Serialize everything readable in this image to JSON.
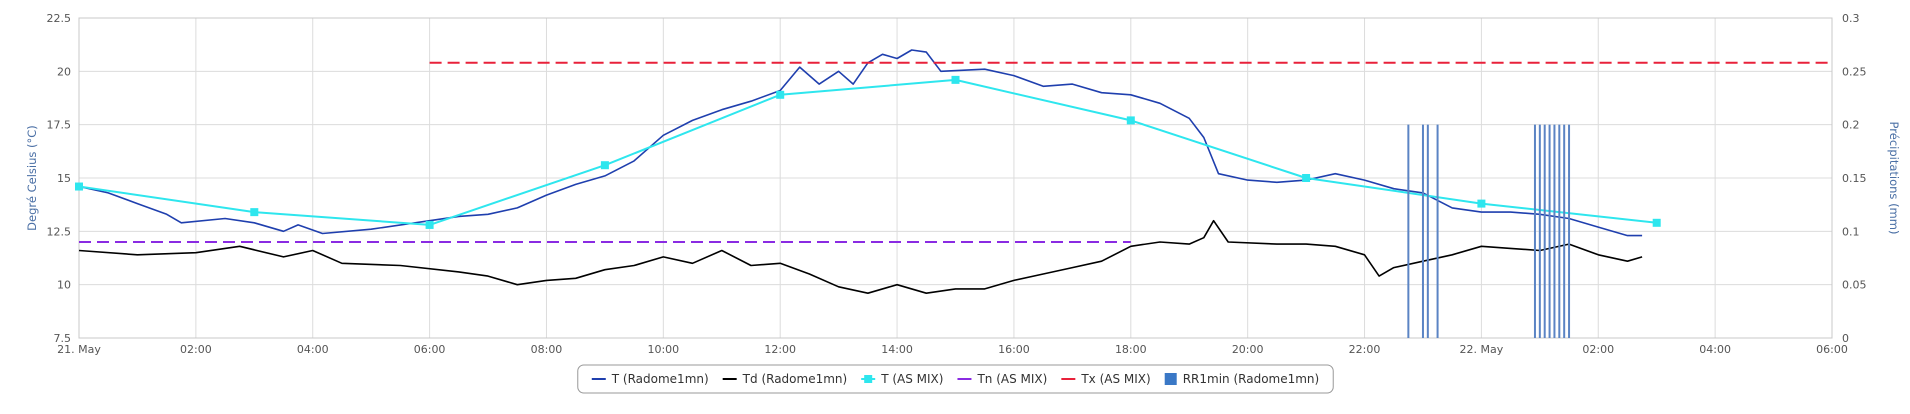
{
  "chart_data": {
    "type": "line",
    "x_axis": {
      "type": "datetime",
      "min": "2023-05-21 00:00",
      "max": "2023-05-22 06:00",
      "tick_labels": [
        "21. May",
        "02:00",
        "04:00",
        "06:00",
        "08:00",
        "10:00",
        "12:00",
        "14:00",
        "16:00",
        "18:00",
        "20:00",
        "22:00",
        "22. May",
        "02:00",
        "04:00",
        "06:00"
      ]
    },
    "y_left": {
      "title": "Degré Celsius (°C)",
      "min": 7.5,
      "max": 22.5,
      "tick_labels": [
        "7.5",
        "10",
        "12.5",
        "15",
        "17.5",
        "20",
        "22.5"
      ]
    },
    "y_right": {
      "title": "Précipitations (mm)",
      "min": 0,
      "max": 0.3,
      "tick_labels": [
        "0",
        "0.05",
        "0.1",
        "0.15",
        "0.2",
        "0.25",
        "0.3"
      ]
    },
    "grid": true,
    "legend_position": "bottom-center",
    "series": [
      {
        "name": "T (Radome1mn)",
        "color": "#1f3fae",
        "kind": "line",
        "points": [
          [
            "2023-05-21 00:00",
            14.6
          ],
          [
            "2023-05-21 00:30",
            14.3
          ],
          [
            "2023-05-21 01:00",
            13.8
          ],
          [
            "2023-05-21 01:30",
            13.3
          ],
          [
            "2023-05-21 01:45",
            12.9
          ],
          [
            "2023-05-21 02:30",
            13.1
          ],
          [
            "2023-05-21 03:00",
            12.9
          ],
          [
            "2023-05-21 03:30",
            12.5
          ],
          [
            "2023-05-21 03:45",
            12.8
          ],
          [
            "2023-05-21 04:10",
            12.4
          ],
          [
            "2023-05-21 05:00",
            12.6
          ],
          [
            "2023-05-21 06:00",
            13.0
          ],
          [
            "2023-05-21 06:30",
            13.2
          ],
          [
            "2023-05-21 07:00",
            13.3
          ],
          [
            "2023-05-21 07:30",
            13.6
          ],
          [
            "2023-05-21 08:00",
            14.2
          ],
          [
            "2023-05-21 08:30",
            14.7
          ],
          [
            "2023-05-21 09:00",
            15.1
          ],
          [
            "2023-05-21 09:30",
            15.8
          ],
          [
            "2023-05-21 10:00",
            17.0
          ],
          [
            "2023-05-21 10:30",
            17.7
          ],
          [
            "2023-05-21 11:00",
            18.2
          ],
          [
            "2023-05-21 11:30",
            18.6
          ],
          [
            "2023-05-21 12:00",
            19.1
          ],
          [
            "2023-05-21 12:20",
            20.2
          ],
          [
            "2023-05-21 12:40",
            19.4
          ],
          [
            "2023-05-21 13:00",
            20.0
          ],
          [
            "2023-05-21 13:15",
            19.4
          ],
          [
            "2023-05-21 13:30",
            20.4
          ],
          [
            "2023-05-21 13:45",
            20.8
          ],
          [
            "2023-05-21 14:00",
            20.6
          ],
          [
            "2023-05-21 14:15",
            21.0
          ],
          [
            "2023-05-21 14:30",
            20.9
          ],
          [
            "2023-05-21 14:45",
            20.0
          ],
          [
            "2023-05-21 15:30",
            20.1
          ],
          [
            "2023-05-21 16:00",
            19.8
          ],
          [
            "2023-05-21 16:30",
            19.3
          ],
          [
            "2023-05-21 17:00",
            19.4
          ],
          [
            "2023-05-21 17:30",
            19.0
          ],
          [
            "2023-05-21 18:00",
            18.9
          ],
          [
            "2023-05-21 18:30",
            18.5
          ],
          [
            "2023-05-21 19:00",
            17.8
          ],
          [
            "2023-05-21 19:15",
            16.9
          ],
          [
            "2023-05-21 19:30",
            15.2
          ],
          [
            "2023-05-21 20:00",
            14.9
          ],
          [
            "2023-05-21 20:30",
            14.8
          ],
          [
            "2023-05-21 21:00",
            14.9
          ],
          [
            "2023-05-21 21:30",
            15.2
          ],
          [
            "2023-05-21 22:00",
            14.9
          ],
          [
            "2023-05-21 22:30",
            14.5
          ],
          [
            "2023-05-21 23:00",
            14.3
          ],
          [
            "2023-05-21 23:30",
            13.6
          ],
          [
            "2023-05-22 00:00",
            13.4
          ],
          [
            "2023-05-22 00:30",
            13.4
          ],
          [
            "2023-05-22 01:00",
            13.3
          ],
          [
            "2023-05-22 01:30",
            13.1
          ],
          [
            "2023-05-22 02:00",
            12.7
          ],
          [
            "2023-05-22 02:30",
            12.3
          ],
          [
            "2023-05-22 02:45",
            12.3
          ]
        ]
      },
      {
        "name": "Td (Radome1mn)",
        "color": "#000000",
        "kind": "line",
        "points": [
          [
            "2023-05-21 00:00",
            11.6
          ],
          [
            "2023-05-21 01:00",
            11.4
          ],
          [
            "2023-05-21 02:00",
            11.5
          ],
          [
            "2023-05-21 02:45",
            11.8
          ],
          [
            "2023-05-21 03:30",
            11.3
          ],
          [
            "2023-05-21 04:00",
            11.6
          ],
          [
            "2023-05-21 04:30",
            11.0
          ],
          [
            "2023-05-21 05:30",
            10.9
          ],
          [
            "2023-05-21 06:30",
            10.6
          ],
          [
            "2023-05-21 07:00",
            10.4
          ],
          [
            "2023-05-21 07:30",
            10.0
          ],
          [
            "2023-05-21 08:00",
            10.2
          ],
          [
            "2023-05-21 08:30",
            10.3
          ],
          [
            "2023-05-21 09:00",
            10.7
          ],
          [
            "2023-05-21 09:30",
            10.9
          ],
          [
            "2023-05-21 10:00",
            11.3
          ],
          [
            "2023-05-21 10:30",
            11.0
          ],
          [
            "2023-05-21 11:00",
            11.6
          ],
          [
            "2023-05-21 11:30",
            10.9
          ],
          [
            "2023-05-21 12:00",
            11.0
          ],
          [
            "2023-05-21 12:30",
            10.5
          ],
          [
            "2023-05-21 13:00",
            9.9
          ],
          [
            "2023-05-21 13:30",
            9.6
          ],
          [
            "2023-05-21 14:00",
            10.0
          ],
          [
            "2023-05-21 14:30",
            9.6
          ],
          [
            "2023-05-21 15:00",
            9.8
          ],
          [
            "2023-05-21 15:30",
            9.8
          ],
          [
            "2023-05-21 16:00",
            10.2
          ],
          [
            "2023-05-21 16:30",
            10.5
          ],
          [
            "2023-05-21 17:00",
            10.8
          ],
          [
            "2023-05-21 17:30",
            11.1
          ],
          [
            "2023-05-21 18:00",
            11.8
          ],
          [
            "2023-05-21 18:30",
            12.0
          ],
          [
            "2023-05-21 19:00",
            11.9
          ],
          [
            "2023-05-21 19:15",
            12.2
          ],
          [
            "2023-05-21 19:25",
            13.0
          ],
          [
            "2023-05-21 19:40",
            12.0
          ],
          [
            "2023-05-21 20:30",
            11.9
          ],
          [
            "2023-05-21 21:00",
            11.9
          ],
          [
            "2023-05-21 21:30",
            11.8
          ],
          [
            "2023-05-21 22:00",
            11.4
          ],
          [
            "2023-05-21 22:15",
            10.4
          ],
          [
            "2023-05-21 22:30",
            10.8
          ],
          [
            "2023-05-21 23:00",
            11.1
          ],
          [
            "2023-05-21 23:30",
            11.4
          ],
          [
            "2023-05-22 00:00",
            11.8
          ],
          [
            "2023-05-22 00:30",
            11.7
          ],
          [
            "2023-05-22 01:00",
            11.6
          ],
          [
            "2023-05-22 01:30",
            11.9
          ],
          [
            "2023-05-22 02:00",
            11.4
          ],
          [
            "2023-05-22 02:30",
            11.1
          ],
          [
            "2023-05-22 02:45",
            11.3
          ]
        ]
      },
      {
        "name": "T (AS MIX)",
        "color": "#2ee6ee",
        "kind": "line-markers",
        "points": [
          [
            "2023-05-21 00:00",
            14.6
          ],
          [
            "2023-05-21 03:00",
            13.4
          ],
          [
            "2023-05-21 06:00",
            12.8
          ],
          [
            "2023-05-21 09:00",
            15.6
          ],
          [
            "2023-05-21 12:00",
            18.9
          ],
          [
            "2023-05-21 15:00",
            19.6
          ],
          [
            "2023-05-21 18:00",
            17.7
          ],
          [
            "2023-05-21 21:00",
            15.0
          ],
          [
            "2023-05-22 00:00",
            13.8
          ],
          [
            "2023-05-22 03:00",
            12.9
          ]
        ]
      },
      {
        "name": "Tn (AS MIX)",
        "color": "#8a2be2",
        "kind": "dashed",
        "points": [
          [
            "2023-05-21 00:00",
            12.0
          ],
          [
            "2023-05-21 18:00",
            12.0
          ]
        ]
      },
      {
        "name": "Tx (AS MIX)",
        "color": "#e8213a",
        "kind": "dashed",
        "points": [
          [
            "2023-05-21 06:00",
            20.4
          ],
          [
            "2023-05-22 06:00",
            20.4
          ]
        ]
      },
      {
        "name": "RR1min (Radome1mn)",
        "color": "#5b84c4",
        "kind": "bar",
        "axis": "right",
        "points": [
          [
            "2023-05-21 22:45",
            0.2
          ],
          [
            "2023-05-21 23:00",
            0.2
          ],
          [
            "2023-05-21 23:05",
            0.2
          ],
          [
            "2023-05-21 23:15",
            0.2
          ],
          [
            "2023-05-22 00:55",
            0.2
          ],
          [
            "2023-05-22 01:00",
            0.2
          ],
          [
            "2023-05-22 01:05",
            0.2
          ],
          [
            "2023-05-22 01:10",
            0.2
          ],
          [
            "2023-05-22 01:15",
            0.2
          ],
          [
            "2023-05-22 01:20",
            0.2
          ],
          [
            "2023-05-22 01:25",
            0.2
          ],
          [
            "2023-05-22 01:30",
            0.2
          ]
        ]
      }
    ]
  }
}
